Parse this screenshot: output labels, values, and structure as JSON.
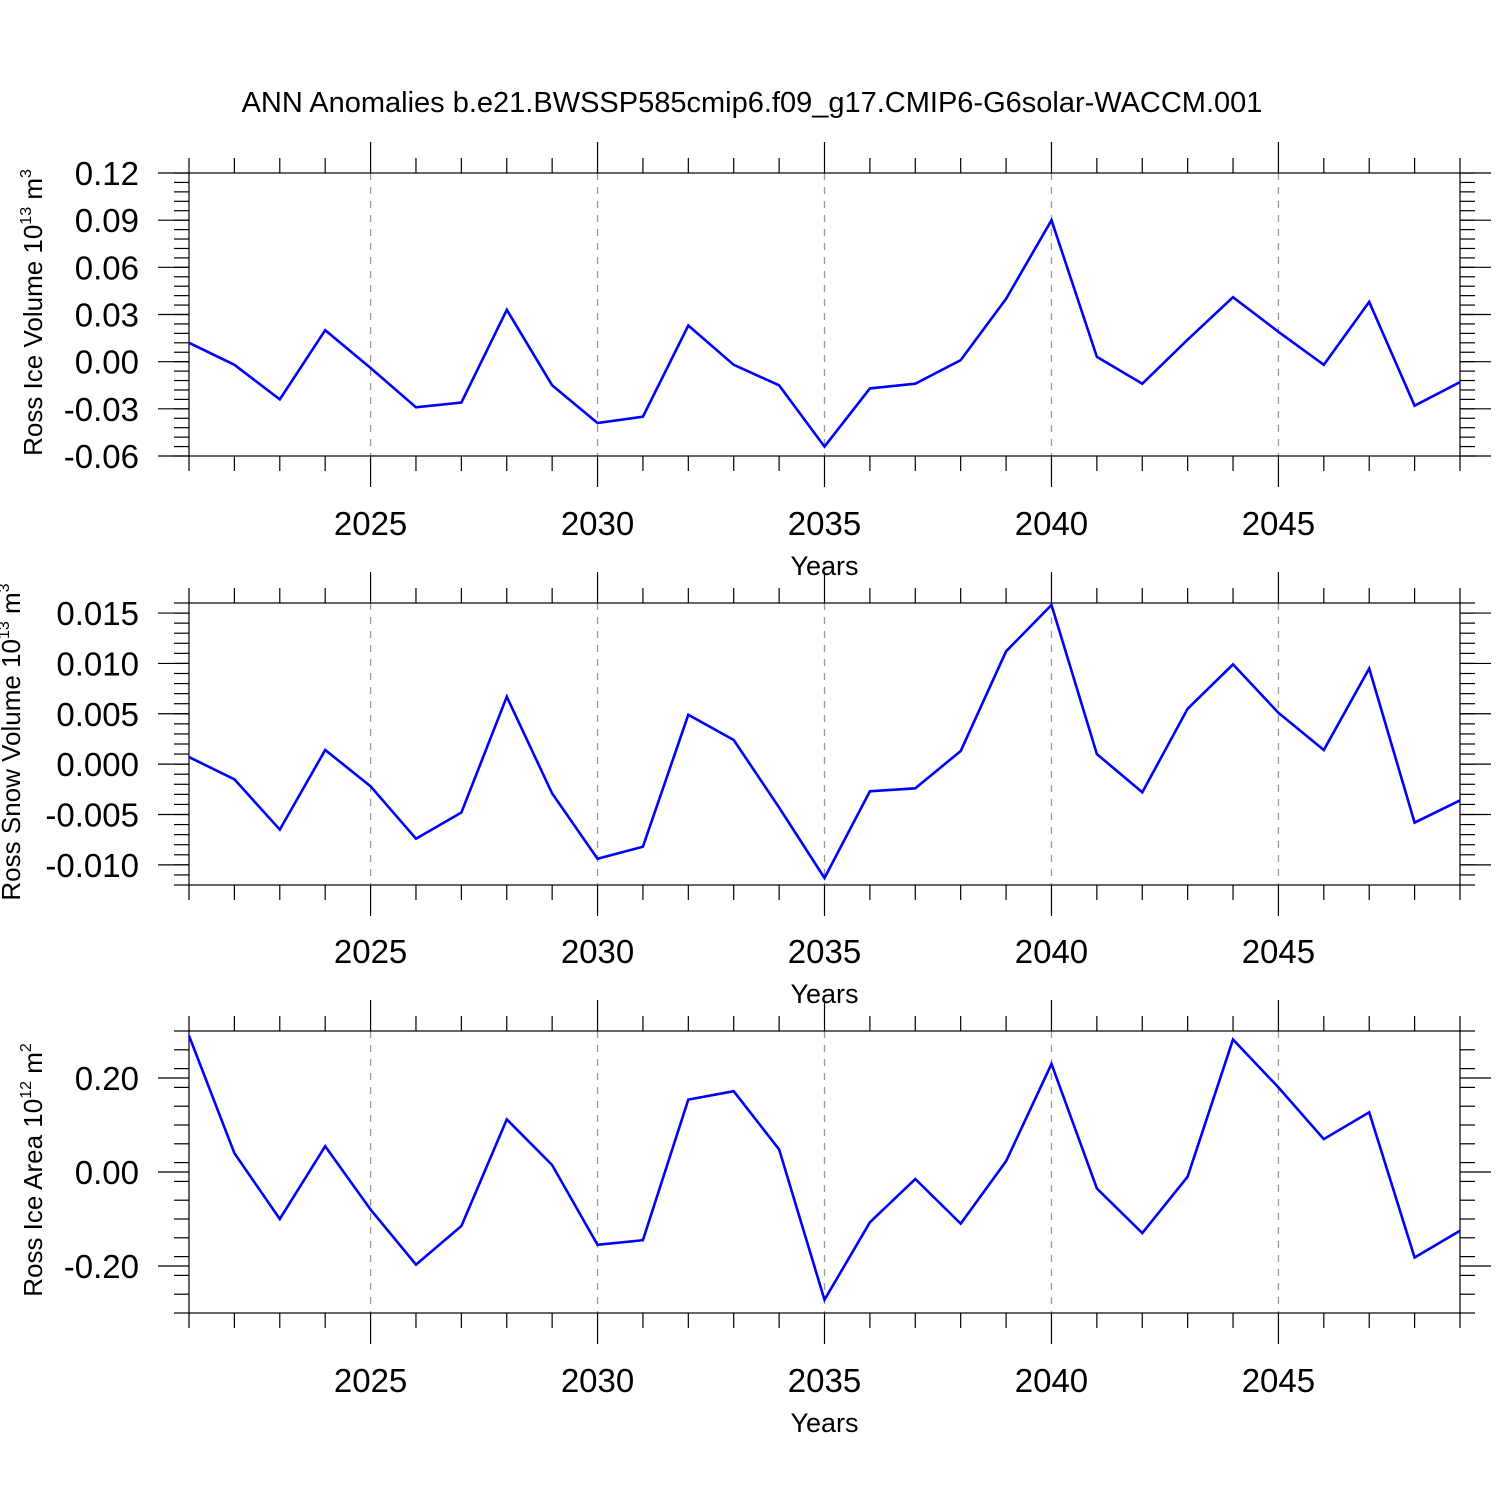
{
  "title": "ANN Anomalies b.e21.BWSSP585cmip6.f09_g17.CMIP6-G6solar-WACCM.001",
  "colors": {
    "line": "#0000ff",
    "grid": "#9a9a9a",
    "axes": "#000000"
  },
  "chart_data": [
    {
      "type": "line",
      "xlabel": "Years",
      "ylabel": "Ross Ice Volume 10",
      "ylabel_exp": "13",
      "ylabel_unit": "m",
      "ylabel_unit_exp": "3",
      "xlim": [
        2021,
        2049
      ],
      "ylim": [
        -0.06,
        0.12
      ],
      "xticks": [
        2025,
        2030,
        2035,
        2040,
        2045
      ],
      "yticks": [
        -0.06,
        -0.03,
        0.0,
        0.03,
        0.06,
        0.09,
        0.12
      ],
      "ytick_labels": [
        "-0.06",
        "-0.03",
        "0.00",
        "0.03",
        "0.06",
        "0.09",
        "0.12"
      ],
      "ytick_minor_step": 0.006,
      "grid": "vertical dashed at major x ticks",
      "x": [
        2021,
        2022,
        2023,
        2024,
        2025,
        2026,
        2027,
        2028,
        2029,
        2030,
        2031,
        2032,
        2033,
        2034,
        2035,
        2036,
        2037,
        2038,
        2039,
        2040,
        2041,
        2042,
        2043,
        2044,
        2045,
        2046,
        2047,
        2048,
        2049
      ],
      "series": [
        {
          "values": [
            0.012,
            -0.002,
            -0.024,
            0.02,
            -0.004,
            -0.029,
            -0.026,
            0.033,
            -0.015,
            -0.039,
            -0.035,
            0.023,
            -0.002,
            -0.015,
            -0.054,
            -0.017,
            -0.014,
            0.001,
            0.04,
            0.09,
            0.003,
            -0.014,
            0.014,
            0.041,
            0.019,
            -0.002,
            0.038,
            -0.028,
            -0.013
          ]
        }
      ]
    },
    {
      "type": "line",
      "xlabel": "Years",
      "ylabel": "Ross Snow Volume 10",
      "ylabel_exp": "13",
      "ylabel_unit": "m",
      "ylabel_unit_exp": "3",
      "xlim": [
        2021,
        2049
      ],
      "ylim": [
        -0.012,
        0.016
      ],
      "xticks": [
        2025,
        2030,
        2035,
        2040,
        2045
      ],
      "yticks": [
        -0.01,
        -0.005,
        0.0,
        0.005,
        0.01,
        0.015
      ],
      "ytick_labels": [
        "-0.010",
        "-0.005",
        "0.000",
        "0.005",
        "0.010",
        "0.015"
      ],
      "ytick_minor_step": 0.001,
      "grid": "vertical dashed at major x ticks",
      "x": [
        2021,
        2022,
        2023,
        2024,
        2025,
        2026,
        2027,
        2028,
        2029,
        2030,
        2031,
        2032,
        2033,
        2034,
        2035,
        2036,
        2037,
        2038,
        2039,
        2040,
        2041,
        2042,
        2043,
        2044,
        2045,
        2046,
        2047,
        2048,
        2049
      ],
      "series": [
        {
          "values": [
            0.0007,
            -0.0015,
            -0.0065,
            0.0014,
            -0.0022,
            -0.0074,
            -0.0048,
            0.0067,
            -0.0029,
            -0.0094,
            -0.0082,
            0.0049,
            0.0024,
            -0.0043,
            -0.0113,
            -0.0027,
            -0.0024,
            0.0013,
            0.0112,
            0.0158,
            0.001,
            -0.0028,
            0.0055,
            0.0099,
            0.0051,
            0.0014,
            0.0095,
            -0.0058,
            -0.0036
          ]
        }
      ]
    },
    {
      "type": "line",
      "xlabel": "Years",
      "ylabel": "Ross Ice Area 10",
      "ylabel_exp": "12",
      "ylabel_unit": "m",
      "ylabel_unit_exp": "2",
      "xlim": [
        2021,
        2049
      ],
      "ylim": [
        -0.3,
        0.3
      ],
      "xticks": [
        2025,
        2030,
        2035,
        2040,
        2045
      ],
      "yticks": [
        -0.2,
        0.0,
        0.2
      ],
      "ytick_labels": [
        "-0.20",
        "0.00",
        "0.20"
      ],
      "ytick_minor_step": 0.04,
      "grid": "vertical dashed at major x ticks",
      "x": [
        2021,
        2022,
        2023,
        2024,
        2025,
        2026,
        2027,
        2028,
        2029,
        2030,
        2031,
        2032,
        2033,
        2034,
        2035,
        2036,
        2037,
        2038,
        2039,
        2040,
        2041,
        2042,
        2043,
        2044,
        2045,
        2046,
        2047,
        2048,
        2049
      ],
      "series": [
        {
          "values": [
            0.29,
            0.04,
            -0.1,
            0.055,
            -0.08,
            -0.197,
            -0.115,
            0.112,
            0.015,
            -0.155,
            -0.145,
            0.154,
            0.172,
            0.048,
            -0.272,
            -0.107,
            -0.015,
            -0.11,
            0.023,
            0.23,
            -0.035,
            -0.13,
            -0.01,
            0.282,
            0.18,
            0.07,
            0.127,
            -0.182,
            -0.125
          ]
        }
      ]
    }
  ]
}
